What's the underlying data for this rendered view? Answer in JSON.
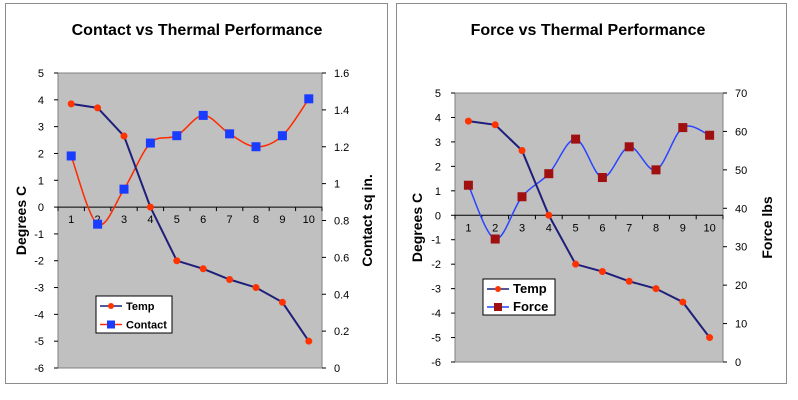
{
  "chart_data": [
    {
      "type": "line",
      "title": "Contact vs Thermal Performance",
      "ylabel": "Degrees C",
      "y2label": "Contact sq in.",
      "categories": [
        "1",
        "2",
        "3",
        "4",
        "5",
        "6",
        "7",
        "8",
        "9",
        "10"
      ],
      "ylim": [
        -6,
        5
      ],
      "y_ticks": [
        "5",
        "4",
        "3",
        "2",
        "1",
        "0",
        "-1",
        "-2",
        "-3",
        "-4",
        "-5",
        "-6"
      ],
      "y2lim": [
        0,
        1.6
      ],
      "y2_ticks": [
        "1.6",
        "1.4",
        "1.2",
        "1",
        "0.8",
        "0.6",
        "0.4",
        "0.2",
        "0"
      ],
      "grid": false,
      "legend": "bottom-left",
      "series": [
        {
          "name": "Temp",
          "axis": "left",
          "color": "#1f1f7a",
          "marker": "circle",
          "marker_color": "#ff3300",
          "values": [
            3.85,
            3.7,
            2.65,
            0.0,
            -2.0,
            -2.3,
            -2.7,
            -3.0,
            -3.55,
            -5.0
          ]
        },
        {
          "name": "Contact",
          "axis": "right",
          "color": "#ff2a00",
          "marker": "square",
          "marker_color": "#1a3cff",
          "values": [
            1.15,
            0.78,
            0.97,
            1.22,
            1.26,
            1.37,
            1.27,
            1.2,
            1.26,
            1.46
          ]
        }
      ]
    },
    {
      "type": "line",
      "title": "Force  vs Thermal Performance",
      "ylabel": "Degrees C",
      "y2label": "Force lbs",
      "categories": [
        "1",
        "2",
        "3",
        "4",
        "5",
        "6",
        "7",
        "8",
        "9",
        "10"
      ],
      "ylim": [
        -6,
        5
      ],
      "y_ticks": [
        "5",
        "4",
        "3",
        "2",
        "1",
        "0",
        "-1",
        "-2",
        "-3",
        "-4",
        "-5",
        "-6"
      ],
      "y2lim": [
        0,
        70
      ],
      "y2_ticks": [
        "70",
        "60",
        "50",
        "40",
        "30",
        "20",
        "10",
        "0"
      ],
      "grid": false,
      "legend": "bottom-left",
      "series": [
        {
          "name": "Temp",
          "axis": "left",
          "color": "#1f1f7a",
          "marker": "circle",
          "marker_color": "#ff3300",
          "values": [
            3.85,
            3.7,
            2.65,
            0.0,
            -2.0,
            -2.3,
            -2.7,
            -3.0,
            -3.55,
            -5.0
          ]
        },
        {
          "name": "Force",
          "axis": "right",
          "color": "#2a44ff",
          "marker": "square",
          "marker_color": "#a01010",
          "values": [
            46,
            32,
            43,
            49,
            58,
            48,
            56,
            50,
            61,
            59
          ]
        }
      ]
    }
  ]
}
